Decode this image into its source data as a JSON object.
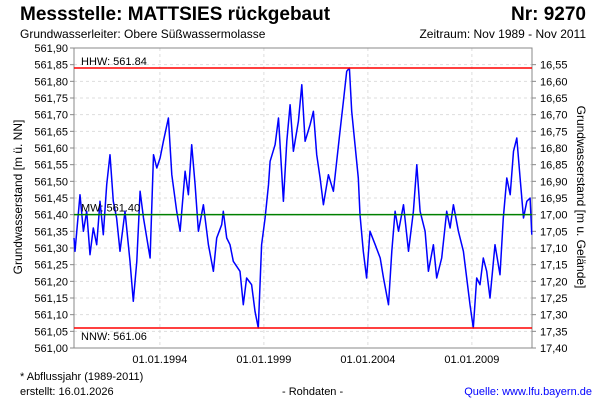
{
  "header": {
    "title": "Messstelle: MATTSIES rückgebaut",
    "number": "Nr: 9270",
    "aquifer": "Grundwasserleiter:   Obere Süßwassermolasse",
    "period": "Zeitraum: Nov 1989 - Nov 2011"
  },
  "footer": {
    "note": "* Abflussjahr (1989-2011)",
    "created": "erstellt:  16.01.2026",
    "raw": "- Rohdaten -",
    "source": "Quelle: www.lfu.bayern.de"
  },
  "chart_data": {
    "type": "line",
    "title": "Messstelle: MATTSIES rückgebaut",
    "ylabel": "Grundwasserstand [m ü. NN]",
    "ylabel_right": "Grundwasserstand [m u. Gelände]",
    "ylim": [
      561.0,
      561.9
    ],
    "ylim_right": [
      16.5,
      17.4
    ],
    "xlim": [
      1989.87,
      2011.89
    ],
    "grid": true,
    "yticks": [
      "561,00",
      "561,05",
      "561,10",
      "561,15",
      "561,20",
      "561,25",
      "561,30",
      "561,35",
      "561,40",
      "561,45",
      "561,50",
      "561,55",
      "561,60",
      "561,65",
      "561,70",
      "561,75",
      "561,80",
      "561,85",
      "561,90"
    ],
    "yticks_right": [
      "16,55",
      "16,60",
      "16,65",
      "16,70",
      "16,75",
      "16,80",
      "16,85",
      "16,90",
      "16,95",
      "17,00",
      "17,05",
      "17,10",
      "17,15",
      "17,20",
      "17,25",
      "17,30",
      "17,35",
      "17,40"
    ],
    "xticks": [
      {
        "x": 1994.0,
        "label": "01.01.1994"
      },
      {
        "x": 1999.0,
        "label": "01.01.1999"
      },
      {
        "x": 2004.0,
        "label": "01.01.2004"
      },
      {
        "x": 2009.0,
        "label": "01.01.2009"
      }
    ],
    "reference_lines": [
      {
        "name": "HHW",
        "value": 561.84,
        "label": "HHW: 561.84",
        "color": "#ff0000",
        "label_pos": "above"
      },
      {
        "name": "MW",
        "value": 561.4,
        "label": "MW: 561.40",
        "color": "#008000",
        "label_pos": "above"
      },
      {
        "name": "NNW",
        "value": 561.06,
        "label": "NNW: 561.06",
        "color": "#ff0000",
        "label_pos": "below"
      }
    ],
    "series": [
      {
        "name": "Grundwasserstand",
        "color": "#0000ff",
        "points": [
          [
            1989.87,
            561.33
          ],
          [
            1989.92,
            561.29
          ],
          [
            1990.16,
            561.46
          ],
          [
            1990.32,
            561.35
          ],
          [
            1990.48,
            561.41
          ],
          [
            1990.64,
            561.28
          ],
          [
            1990.8,
            561.36
          ],
          [
            1990.96,
            561.31
          ],
          [
            1991.12,
            561.44
          ],
          [
            1991.28,
            561.34
          ],
          [
            1991.44,
            561.49
          ],
          [
            1991.6,
            561.58
          ],
          [
            1991.76,
            561.44
          ],
          [
            1991.92,
            561.39
          ],
          [
            1992.08,
            561.29
          ],
          [
            1992.32,
            561.41
          ],
          [
            1992.56,
            561.26
          ],
          [
            1992.72,
            561.14
          ],
          [
            1992.89,
            561.26
          ],
          [
            1993.05,
            561.47
          ],
          [
            1993.21,
            561.39
          ],
          [
            1993.53,
            561.27
          ],
          [
            1993.69,
            561.58
          ],
          [
            1993.85,
            561.54
          ],
          [
            1994.01,
            561.57
          ],
          [
            1994.17,
            561.62
          ],
          [
            1994.41,
            561.69
          ],
          [
            1994.57,
            561.52
          ],
          [
            1994.81,
            561.41
          ],
          [
            1994.97,
            561.35
          ],
          [
            1995.21,
            561.53
          ],
          [
            1995.37,
            561.46
          ],
          [
            1995.53,
            561.61
          ],
          [
            1995.69,
            561.49
          ],
          [
            1995.85,
            561.35
          ],
          [
            1996.09,
            561.43
          ],
          [
            1996.33,
            561.31
          ],
          [
            1996.57,
            561.23
          ],
          [
            1996.73,
            561.33
          ],
          [
            1996.97,
            561.37
          ],
          [
            1997.05,
            561.41
          ],
          [
            1997.21,
            561.33
          ],
          [
            1997.37,
            561.31
          ],
          [
            1997.53,
            561.26
          ],
          [
            1997.85,
            561.23
          ],
          [
            1998.01,
            561.13
          ],
          [
            1998.17,
            561.21
          ],
          [
            1998.41,
            561.19
          ],
          [
            1998.57,
            561.11
          ],
          [
            1998.73,
            561.06
          ],
          [
            1998.89,
            561.31
          ],
          [
            1999.06,
            561.39
          ],
          [
            1999.22,
            561.49
          ],
          [
            1999.3,
            561.56
          ],
          [
            1999.54,
            561.61
          ],
          [
            1999.7,
            561.69
          ],
          [
            1999.94,
            561.44
          ],
          [
            2000.1,
            561.62
          ],
          [
            2000.26,
            561.73
          ],
          [
            2000.42,
            561.59
          ],
          [
            2000.66,
            561.68
          ],
          [
            2000.82,
            561.79
          ],
          [
            2000.98,
            561.62
          ],
          [
            2001.22,
            561.67
          ],
          [
            2001.38,
            561.71
          ],
          [
            2001.54,
            561.58
          ],
          [
            2001.7,
            561.51
          ],
          [
            2001.86,
            561.43
          ],
          [
            2002.1,
            561.52
          ],
          [
            2002.34,
            561.47
          ],
          [
            2002.5,
            561.56
          ],
          [
            2002.66,
            561.65
          ],
          [
            2002.82,
            561.74
          ],
          [
            2002.98,
            561.83
          ],
          [
            2003.11,
            561.84
          ],
          [
            2003.22,
            561.71
          ],
          [
            2003.38,
            561.61
          ],
          [
            2003.54,
            561.51
          ],
          [
            2003.62,
            561.4
          ],
          [
            2003.78,
            561.29
          ],
          [
            2003.94,
            561.21
          ],
          [
            2004.1,
            561.35
          ],
          [
            2004.35,
            561.31
          ],
          [
            2004.59,
            561.27
          ],
          [
            2004.75,
            561.21
          ],
          [
            2004.99,
            561.13
          ],
          [
            2005.15,
            561.29
          ],
          [
            2005.31,
            561.41
          ],
          [
            2005.47,
            561.35
          ],
          [
            2005.71,
            561.43
          ],
          [
            2005.95,
            561.29
          ],
          [
            2006.19,
            561.41
          ],
          [
            2006.35,
            561.55
          ],
          [
            2006.51,
            561.41
          ],
          [
            2006.75,
            561.35
          ],
          [
            2006.91,
            561.23
          ],
          [
            2007.15,
            561.31
          ],
          [
            2007.31,
            561.21
          ],
          [
            2007.55,
            561.27
          ],
          [
            2007.79,
            561.41
          ],
          [
            2007.95,
            561.36
          ],
          [
            2008.11,
            561.43
          ],
          [
            2008.35,
            561.35
          ],
          [
            2008.59,
            561.29
          ],
          [
            2008.75,
            561.21
          ],
          [
            2008.91,
            561.13
          ],
          [
            2009.07,
            561.06
          ],
          [
            2009.23,
            561.21
          ],
          [
            2009.39,
            561.19
          ],
          [
            2009.55,
            561.27
          ],
          [
            2009.71,
            561.23
          ],
          [
            2009.87,
            561.15
          ],
          [
            2010.11,
            561.31
          ],
          [
            2010.35,
            561.22
          ],
          [
            2010.51,
            561.39
          ],
          [
            2010.68,
            561.51
          ],
          [
            2010.84,
            561.46
          ],
          [
            2011.0,
            561.59
          ],
          [
            2011.16,
            561.63
          ],
          [
            2011.32,
            561.51
          ],
          [
            2011.48,
            561.39
          ],
          [
            2011.64,
            561.44
          ],
          [
            2011.8,
            561.45
          ],
          [
            2011.88,
            561.34
          ]
        ]
      }
    ]
  }
}
